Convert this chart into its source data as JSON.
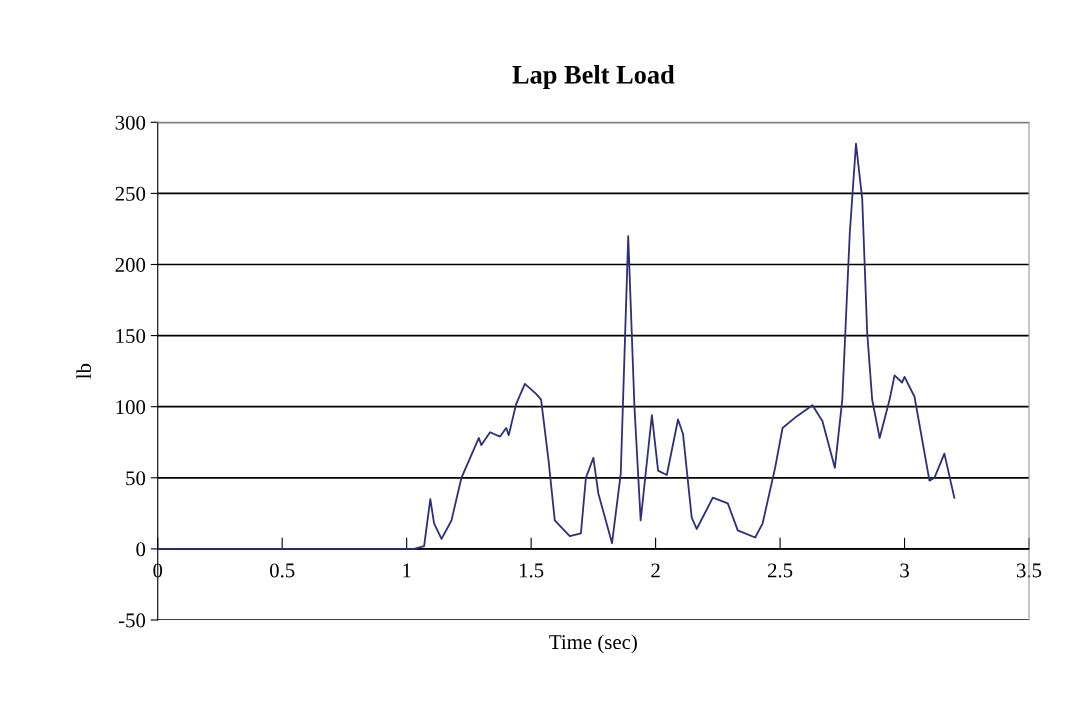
{
  "chart_data": {
    "type": "line",
    "title": "Lap Belt Load",
    "xlabel": "Time (sec)",
    "ylabel": "lb",
    "xlim": [
      0,
      3.5
    ],
    "xticks": [
      0,
      0.5,
      1,
      1.5,
      2,
      2.5,
      3,
      3.5
    ],
    "ylim": [
      -50,
      300
    ],
    "yticks": [
      -50,
      0,
      50,
      100,
      150,
      200,
      250,
      300
    ],
    "grid": "y",
    "marker": "none",
    "line_style": "solid",
    "series": [
      {
        "color": "#2e2e7a",
        "x": [
          0,
          1.03,
          1.07,
          1.095,
          1.11,
          1.14,
          1.18,
          1.22,
          1.29,
          1.3,
          1.335,
          1.375,
          1.4,
          1.41,
          1.44,
          1.475,
          1.52,
          1.54,
          1.57,
          1.595,
          1.655,
          1.7,
          1.72,
          1.75,
          1.77,
          1.825,
          1.86,
          1.89,
          1.915,
          1.94,
          1.985,
          2.01,
          2.045,
          2.09,
          2.11,
          2.145,
          2.165,
          2.23,
          2.29,
          2.33,
          2.4,
          2.43,
          2.48,
          2.51,
          2.565,
          2.63,
          2.67,
          2.72,
          2.75,
          2.78,
          2.805,
          2.83,
          2.85,
          2.87,
          2.9,
          2.94,
          2.96,
          2.99,
          3.0,
          3.04,
          3.1,
          3.12,
          3.16,
          3.2
        ],
        "values": [
          0,
          0,
          2,
          35,
          18,
          7,
          20,
          50,
          78,
          73,
          82,
          79,
          85,
          80,
          102,
          116,
          109,
          105,
          62,
          20,
          9,
          11,
          50,
          64,
          39,
          4,
          53,
          220,
          100,
          20,
          94,
          55,
          52,
          91,
          81,
          22,
          14,
          36,
          32,
          13,
          8,
          18,
          57,
          85,
          93,
          101,
          90,
          57,
          105,
          222,
          285,
          246,
          152,
          105,
          78,
          105,
          122,
          117,
          121,
          107,
          48,
          50,
          67,
          36
        ]
      }
    ]
  }
}
